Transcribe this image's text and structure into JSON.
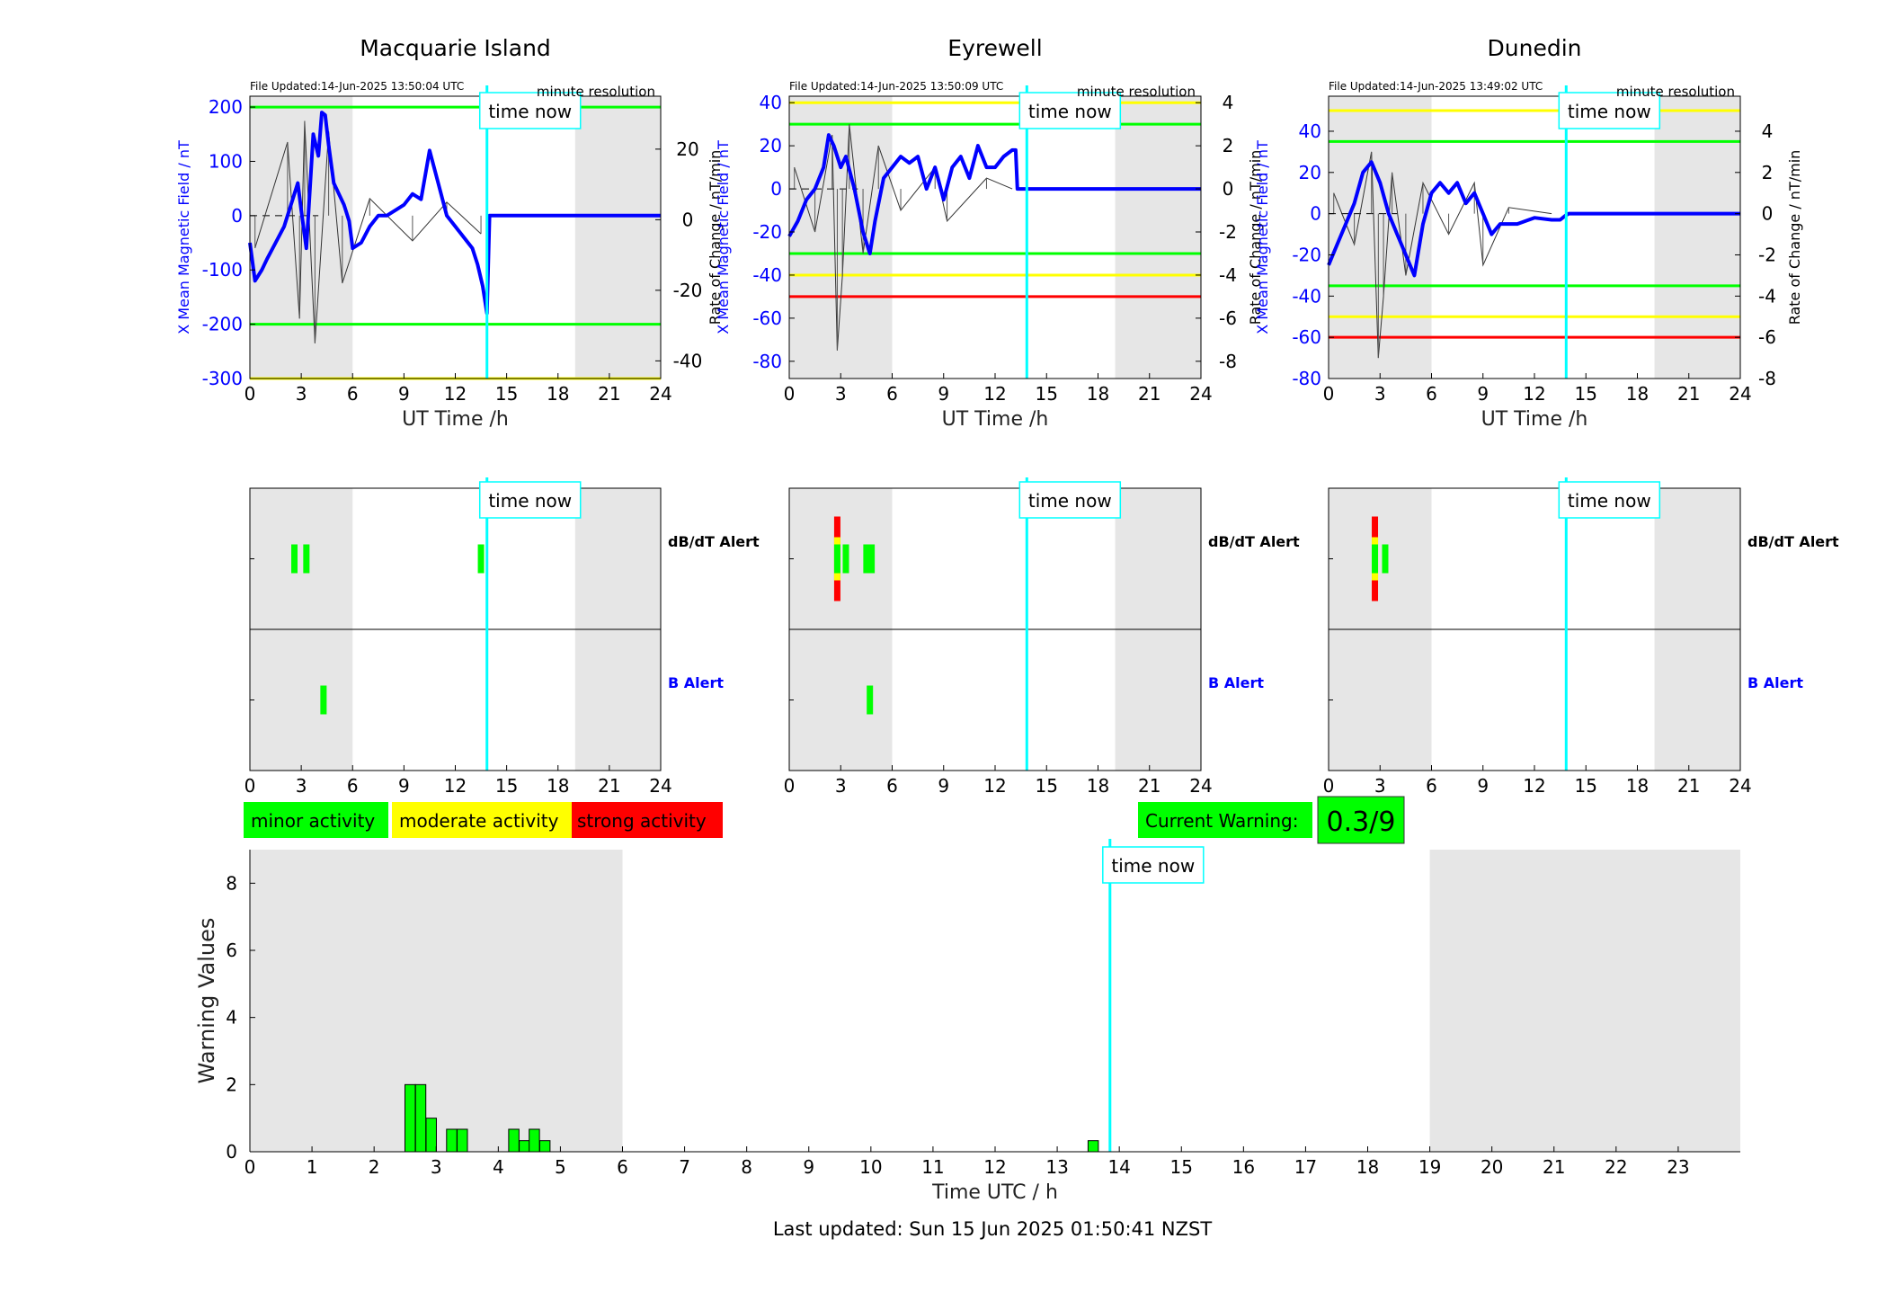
{
  "footer": {
    "last_updated": "Last updated: Sun 15 Jun 2025 01:50:41 NZST"
  },
  "legend": {
    "minor": "minor activity",
    "moderate": "moderate activity",
    "strong": "strong activity"
  },
  "current_warning": {
    "label": "Current Warning:",
    "value": "0.3/9"
  },
  "colors": {
    "field": "#0000ff",
    "rate": "#333333",
    "green": "#00ff00",
    "yellow": "#ffff00",
    "red": "#ff0000",
    "cyan": "#00ffff",
    "shade": "#e6e6e6"
  },
  "chart_data": [
    {
      "type": "line",
      "title": "Macquarie Island",
      "file_updated": "File Updated:14-Jun-2025 13:50:04 UTC",
      "resolution": "minute resolution",
      "xlabel": "UT Time /h",
      "ylabel_left": "X Mean Magnetic Field / nT",
      "ylabel_right": "Rate of Change / nT/min",
      "now_label": "time now",
      "now_hour": 13.85,
      "xlim": [
        0,
        24
      ],
      "ylim": [
        -300,
        220
      ],
      "y2lim": [
        -45,
        35
      ],
      "xticks": [
        0,
        3,
        6,
        9,
        12,
        15,
        18,
        21,
        24
      ],
      "yticks": [
        -300,
        -200,
        -100,
        0,
        100,
        200
      ],
      "y2ticks": [
        -40,
        -20,
        0,
        20
      ],
      "night_spans": [
        [
          0,
          6
        ],
        [
          19,
          24
        ]
      ],
      "thresholds": [
        {
          "value": 200,
          "color": "green"
        },
        {
          "value": -200,
          "color": "green"
        },
        {
          "value": -300,
          "color": "yellow"
        }
      ],
      "series": [
        {
          "x": [
            0,
            0.3,
            0.7,
            1.0,
            1.5,
            2.0,
            2.5,
            2.8,
            3.0,
            3.3,
            3.7,
            4.0,
            4.2,
            4.4,
            4.6,
            4.9,
            5.2,
            5.5,
            5.8,
            6.0,
            6.5,
            7.0,
            7.5,
            8.0,
            8.5,
            9.0,
            9.5,
            10.0,
            10.5,
            11.0,
            11.5,
            12.0,
            12.5,
            13.0,
            13.3,
            13.6,
            13.85,
            14.0,
            24
          ],
          "y": [
            -50,
            -120,
            -100,
            -80,
            -50,
            -20,
            30,
            60,
            10,
            -60,
            150,
            110,
            190,
            185,
            130,
            60,
            40,
            20,
            -10,
            -60,
            -50,
            -20,
            0,
            0,
            10,
            20,
            40,
            30,
            120,
            60,
            0,
            -20,
            -40,
            -60,
            -90,
            -130,
            -180,
            0,
            0
          ]
        }
      ],
      "rate_series": {
        "x": [
          0.3,
          2.2,
          2.9,
          3.2,
          3.8,
          4.6,
          5.4,
          7.0,
          9.5,
          11.5,
          13.5
        ],
        "y": [
          -8,
          22,
          -28,
          28,
          -35,
          25,
          -18,
          6,
          -6,
          5,
          -4
        ]
      },
      "alerts": {
        "dbdt_label": "dB/dT Alert",
        "b_label": "B Alert",
        "dbdt": [
          {
            "h": 2.6,
            "level": "minor"
          },
          {
            "h": 3.3,
            "level": "minor"
          },
          {
            "h": 13.5,
            "level": "minor"
          }
        ],
        "b": [
          {
            "h": 4.3,
            "level": "minor"
          }
        ]
      }
    },
    {
      "type": "line",
      "title": "Eyrewell",
      "file_updated": "File Updated:14-Jun-2025 13:50:09 UTC",
      "resolution": "minute resolution",
      "xlabel": "UT Time /h",
      "ylabel_left": "X Mean Magnetic Field / nT",
      "ylabel_right": "Rate of Change / nT/min",
      "now_label": "time now",
      "now_hour": 13.85,
      "xlim": [
        0,
        24
      ],
      "ylim": [
        -88,
        43
      ],
      "y2lim": [
        -8.8,
        4.3
      ],
      "xticks": [
        0,
        3,
        6,
        9,
        12,
        15,
        18,
        21,
        24
      ],
      "yticks": [
        -80,
        -60,
        -40,
        -20,
        0,
        20,
        40
      ],
      "y2ticks": [
        -8,
        -6,
        -4,
        -2,
        0,
        2,
        4
      ],
      "night_spans": [
        [
          0,
          6
        ],
        [
          19,
          24
        ]
      ],
      "thresholds": [
        {
          "value": 40,
          "color": "yellow"
        },
        {
          "value": 30,
          "color": "green"
        },
        {
          "value": -30,
          "color": "green"
        },
        {
          "value": -40,
          "color": "yellow"
        },
        {
          "value": -50,
          "color": "red"
        }
      ],
      "series": [
        {
          "x": [
            0,
            0.5,
            1.0,
            1.5,
            2.0,
            2.3,
            2.6,
            3.0,
            3.3,
            3.8,
            4.3,
            4.7,
            5.0,
            5.5,
            6.0,
            6.5,
            7.0,
            7.5,
            8.0,
            8.5,
            9.0,
            9.5,
            10.0,
            10.5,
            11.0,
            11.5,
            12.0,
            12.5,
            13.0,
            13.2,
            13.3,
            24
          ],
          "y": [
            -22,
            -15,
            -5,
            0,
            10,
            25,
            20,
            10,
            15,
            0,
            -20,
            -30,
            -15,
            5,
            10,
            15,
            12,
            15,
            0,
            10,
            -5,
            10,
            15,
            5,
            20,
            10,
            10,
            15,
            18,
            18,
            0,
            0
          ]
        }
      ],
      "rate_series": {
        "x": [
          0.3,
          1.5,
          2.5,
          2.8,
          3.1,
          3.5,
          4.3,
          5.2,
          6.5,
          8.5,
          9.2,
          11.5,
          13.0
        ],
        "y": [
          1,
          -2,
          2.5,
          -7.5,
          -4,
          3,
          -3,
          2,
          -1,
          1,
          -1.5,
          0.5,
          0
        ]
      },
      "alerts": {
        "dbdt_label": "dB/dT Alert",
        "b_label": "B Alert",
        "dbdt": [
          {
            "h": 2.8,
            "level": "strong"
          },
          {
            "h": 3.3,
            "level": "minor"
          },
          {
            "h": 4.5,
            "level": "minor"
          },
          {
            "h": 4.8,
            "level": "minor"
          }
        ],
        "b": [
          {
            "h": 4.7,
            "level": "minor"
          }
        ]
      }
    },
    {
      "type": "line",
      "title": "Dunedin",
      "file_updated": "File Updated:14-Jun-2025 13:49:02 UTC",
      "resolution": "minute resolution",
      "xlabel": "UT Time /h",
      "ylabel_left": "X Mean Magnetic Field / nT",
      "ylabel_right": "Rate of Change / nT/min",
      "now_label": "time now",
      "now_hour": 13.85,
      "xlim": [
        0,
        24
      ],
      "ylim": [
        -80,
        57
      ],
      "y2lim": [
        -8,
        5.7
      ],
      "xticks": [
        0,
        3,
        6,
        9,
        12,
        15,
        18,
        21,
        24
      ],
      "yticks": [
        -80,
        -60,
        -40,
        -20,
        0,
        20,
        40
      ],
      "y2ticks": [
        -8,
        -6,
        -4,
        -2,
        0,
        2,
        4
      ],
      "night_spans": [
        [
          0,
          6
        ],
        [
          19,
          24
        ]
      ],
      "thresholds": [
        {
          "value": 50,
          "color": "yellow"
        },
        {
          "value": 35,
          "color": "green"
        },
        {
          "value": -35,
          "color": "green"
        },
        {
          "value": -50,
          "color": "yellow"
        },
        {
          "value": -60,
          "color": "red"
        }
      ],
      "series": [
        {
          "x": [
            0,
            0.5,
            1.0,
            1.5,
            2.0,
            2.5,
            3.0,
            3.5,
            4.0,
            4.5,
            5.0,
            5.5,
            6.0,
            6.5,
            7.0,
            7.5,
            8.0,
            8.5,
            9.0,
            9.5,
            10.0,
            11.0,
            12.0,
            13.0,
            13.5,
            13.8,
            14.0,
            24
          ],
          "y": [
            -25,
            -15,
            -5,
            5,
            20,
            25,
            15,
            0,
            -10,
            -20,
            -30,
            -5,
            10,
            15,
            10,
            15,
            5,
            10,
            0,
            -10,
            -5,
            -5,
            -2,
            -3,
            -3,
            -1,
            0,
            0
          ]
        }
      ],
      "rate_series": {
        "x": [
          0.3,
          1.5,
          2.5,
          2.9,
          3.2,
          3.7,
          4.5,
          5.5,
          7.0,
          8.5,
          9.0,
          10.5,
          13.0
        ],
        "y": [
          1,
          -1.5,
          3,
          -7,
          -4,
          2,
          -3,
          1.5,
          -1,
          1.5,
          -2.5,
          0.3,
          0
        ]
      },
      "alerts": {
        "dbdt_label": "dB/dT Alert",
        "b_label": "B Alert",
        "dbdt": [
          {
            "h": 2.7,
            "level": "strong"
          },
          {
            "h": 3.3,
            "level": "minor"
          }
        ],
        "b": []
      }
    },
    {
      "type": "bar",
      "xlabel": "Time UTC / h",
      "ylabel": "Warning Values",
      "now_label": "time now",
      "now_hour": 13.85,
      "xlim": [
        0,
        24
      ],
      "ylim": [
        0,
        9
      ],
      "xticks": [
        0,
        1,
        2,
        3,
        4,
        5,
        6,
        7,
        8,
        9,
        10,
        11,
        12,
        13,
        14,
        15,
        16,
        17,
        18,
        19,
        20,
        21,
        22,
        23
      ],
      "yticks": [
        0,
        2,
        4,
        6,
        8
      ],
      "night_spans": [
        [
          0,
          6
        ],
        [
          19,
          24
        ]
      ],
      "bar_width": 0.166,
      "x": [
        2.58,
        2.75,
        2.92,
        3.25,
        3.42,
        4.25,
        4.42,
        4.58,
        4.75,
        13.58
      ],
      "values": [
        2.0,
        2.0,
        1.0,
        0.67,
        0.67,
        0.67,
        0.33,
        0.67,
        0.33,
        0.33
      ]
    }
  ]
}
